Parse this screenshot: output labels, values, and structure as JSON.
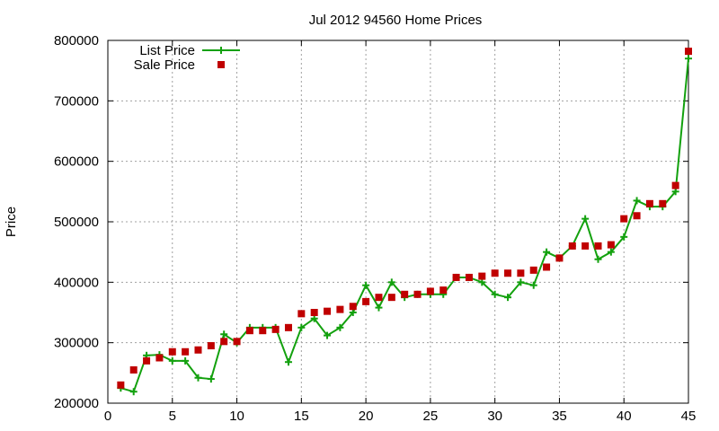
{
  "chart_data": {
    "type": "line",
    "title": "Jul 2012 94560 Home Prices",
    "xlabel": "",
    "ylabel": "Price",
    "xlim": [
      0,
      45
    ],
    "ylim": [
      200000,
      800000
    ],
    "x_ticks": [
      "0",
      "5",
      "10",
      "15",
      "20",
      "25",
      "30",
      "35",
      "40",
      "45"
    ],
    "y_ticks": [
      "200000",
      "300000",
      "400000",
      "500000",
      "600000",
      "700000",
      "800000"
    ],
    "grid": true,
    "legend_position": "top-left",
    "series": [
      {
        "name": "List Price",
        "style": "lines+points",
        "color": "#13a10e",
        "x": [
          1,
          2,
          3,
          4,
          5,
          6,
          7,
          8,
          9,
          10,
          11,
          12,
          13,
          14,
          15,
          16,
          17,
          18,
          19,
          20,
          21,
          22,
          23,
          24,
          25,
          26,
          27,
          28,
          29,
          30,
          31,
          32,
          33,
          34,
          35,
          36,
          37,
          38,
          39,
          40,
          41,
          42,
          43,
          44,
          45
        ],
        "y": [
          225000,
          219000,
          279000,
          280000,
          270000,
          270000,
          242000,
          240000,
          314000,
          300000,
          325000,
          325000,
          325000,
          268000,
          325000,
          340000,
          312000,
          325000,
          350000,
          395000,
          358000,
          400000,
          375000,
          380000,
          380000,
          380000,
          408000,
          408000,
          400000,
          380000,
          375000,
          400000,
          395000,
          450000,
          440000,
          460000,
          505000,
          438000,
          450000,
          475000,
          535000,
          525000,
          525000,
          550000,
          770000
        ]
      },
      {
        "name": "Sale Price",
        "style": "points",
        "color": "#c00000",
        "x": [
          1,
          2,
          3,
          4,
          5,
          6,
          7,
          8,
          9,
          10,
          11,
          12,
          13,
          14,
          15,
          16,
          17,
          18,
          19,
          20,
          21,
          22,
          23,
          24,
          25,
          26,
          27,
          28,
          29,
          30,
          31,
          32,
          33,
          34,
          35,
          36,
          37,
          38,
          39,
          40,
          41,
          42,
          43,
          44,
          45
        ],
        "y": [
          230000,
          255000,
          270000,
          275000,
          285000,
          285000,
          288000,
          295000,
          302000,
          302000,
          320000,
          320000,
          322000,
          325000,
          348000,
          350000,
          352000,
          355000,
          360000,
          368000,
          375000,
          375000,
          380000,
          380000,
          385000,
          387000,
          408000,
          408000,
          410000,
          415000,
          415000,
          415000,
          420000,
          425000,
          440000,
          460000,
          460000,
          460000,
          462000,
          505000,
          510000,
          530000,
          530000,
          560000,
          782000
        ]
      }
    ]
  }
}
